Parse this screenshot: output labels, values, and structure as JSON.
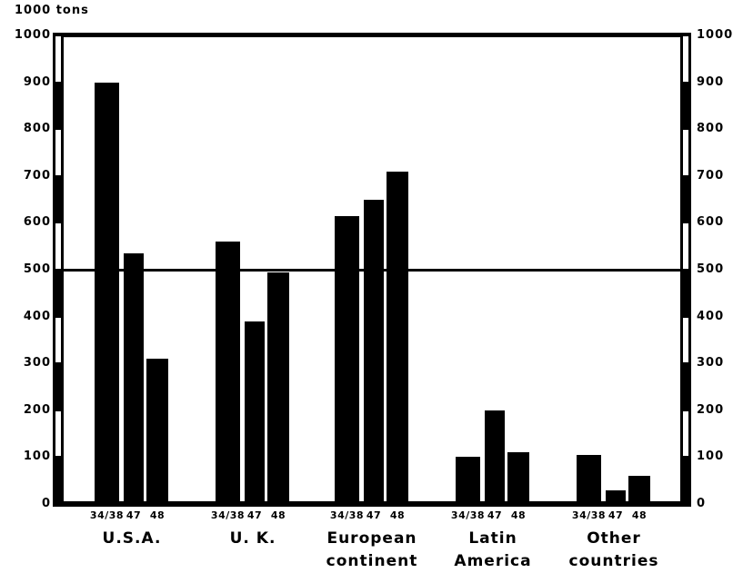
{
  "unit_label": "1000 tons",
  "chart_data": {
    "type": "bar",
    "title": "",
    "ylabel": "1000 tons",
    "ylim": [
      0,
      1000
    ],
    "y_ticks": [
      0,
      100,
      200,
      300,
      400,
      500,
      600,
      700,
      800,
      900,
      1000
    ],
    "y_tick_sides": "both",
    "reference_line_y": 500,
    "grid": false,
    "legend": "none",
    "axis_style": "striped-scale-bars-both-sides",
    "bar_labels": [
      "34/38",
      "47",
      "48"
    ],
    "groups": [
      {
        "name": "U.S.A.",
        "label_lines": [
          "U.S.A."
        ],
        "values": [
          900,
          535,
          310
        ]
      },
      {
        "name": "U. K.",
        "label_lines": [
          "U. K."
        ],
        "values": [
          560,
          390,
          495
        ]
      },
      {
        "name": "European continent",
        "label_lines": [
          "European",
          "continent"
        ],
        "values": [
          615,
          650,
          710
        ]
      },
      {
        "name": "Latin America",
        "label_lines": [
          "Latin",
          "America"
        ],
        "values": [
          100,
          200,
          110
        ]
      },
      {
        "name": "Other countries",
        "label_lines": [
          "Other",
          "countries"
        ],
        "values": [
          105,
          30,
          60
        ]
      }
    ],
    "colors": {
      "bar": "#000000",
      "background": "#ffffff",
      "text": "#000000"
    }
  }
}
